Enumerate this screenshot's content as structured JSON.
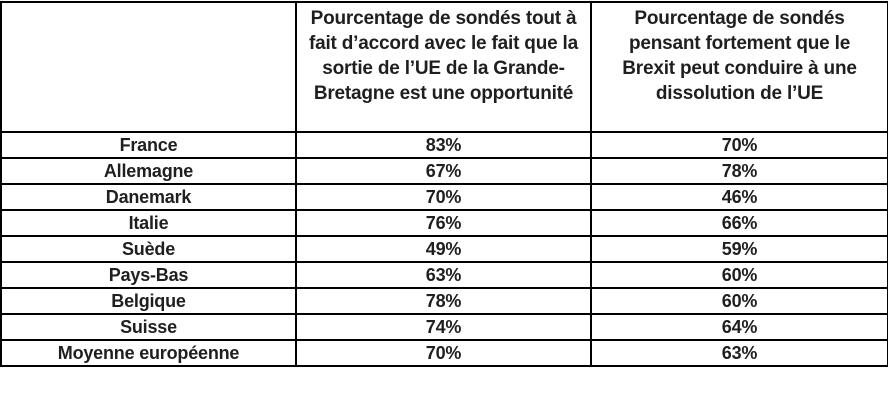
{
  "page": {
    "background_color": "#ffffff",
    "text_color": "#1f1f1f",
    "border_color": "#000000"
  },
  "table": {
    "columns": [
      "",
      "Pourcentage de sondés tout à fait d’accord avec le fait que la sortie de l’UE de la Grande-Bretagne est une opportunité",
      "Pourcentage de sondés pensant fortement que le Brexit peut conduire à une dissolution de l’UE"
    ],
    "rows": [
      [
        "France",
        "83%",
        "70%"
      ],
      [
        "Allemagne",
        "67%",
        "78%"
      ],
      [
        "Danemark",
        "70%",
        "46%"
      ],
      [
        "Italie",
        "76%",
        "66%"
      ],
      [
        "Suède",
        "49%",
        "59%"
      ],
      [
        "Pays-Bas",
        "63%",
        "60%"
      ],
      [
        "Belgique",
        "78%",
        "60%"
      ],
      [
        "Suisse",
        "74%",
        "64%"
      ],
      [
        "Moyenne européenne",
        "70%",
        "63%"
      ]
    ]
  },
  "chart_data": {
    "type": "table",
    "title": "",
    "categories": [
      "France",
      "Allemagne",
      "Danemark",
      "Italie",
      "Suède",
      "Pays-Bas",
      "Belgique",
      "Suisse",
      "Moyenne européenne"
    ],
    "series": [
      {
        "name": "Pourcentage de sondés tout à fait d’accord avec le fait que la sortie de l’UE de la Grande-Bretagne est une opportunité",
        "values": [
          83,
          67,
          70,
          76,
          49,
          63,
          78,
          74,
          70
        ],
        "unit": "%"
      },
      {
        "name": "Pourcentage de sondés pensant fortement que le Brexit peut conduire à une dissolution de l’UE",
        "values": [
          70,
          78,
          46,
          66,
          59,
          60,
          60,
          64,
          63
        ],
        "unit": "%"
      }
    ],
    "layout": {
      "grid": true,
      "header_position": "top",
      "row_label_column": "country"
    }
  }
}
